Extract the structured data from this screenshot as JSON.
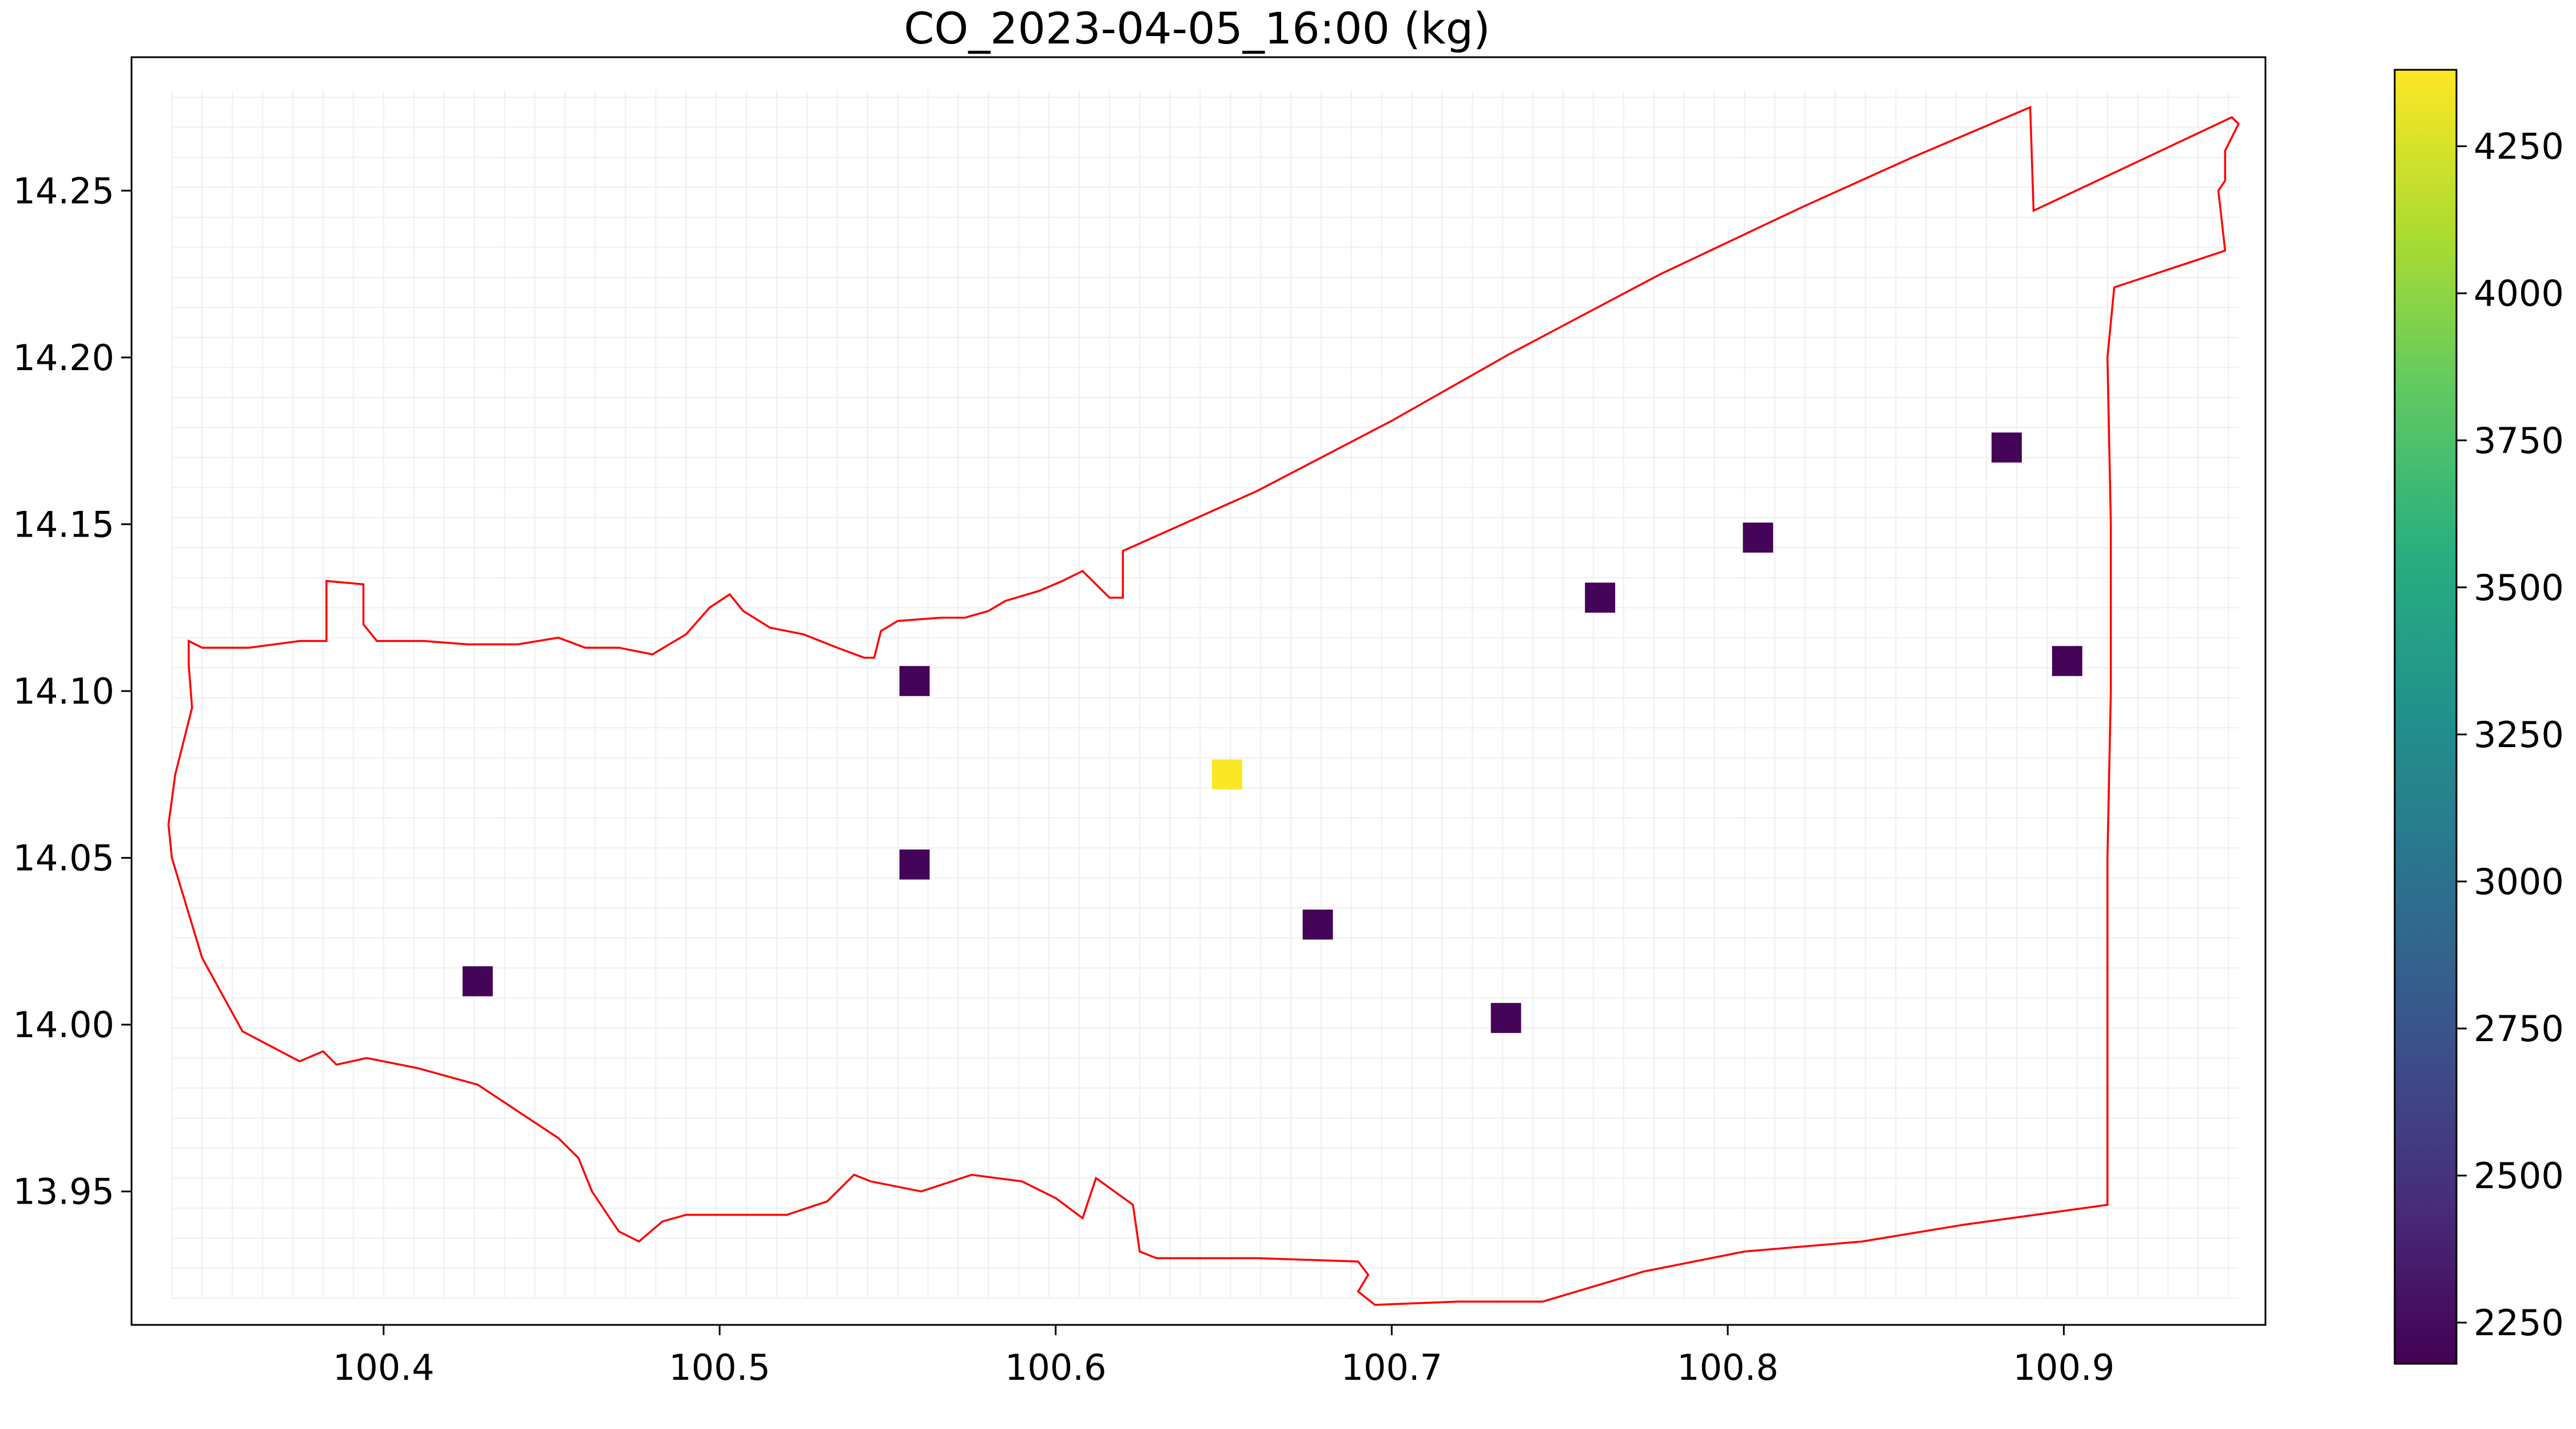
{
  "chart_data": {
    "type": "heatmap",
    "title": "CO_2023-04-05_16:00 (kg)",
    "xlabel": "",
    "ylabel": "",
    "xlim": [
      100.325,
      100.96
    ],
    "ylim": [
      13.91,
      14.29
    ],
    "x_ticks": [
      "100.4",
      "100.5",
      "100.6",
      "100.7",
      "100.8",
      "100.9"
    ],
    "y_ticks": [
      "13.95",
      "14.00",
      "14.05",
      "14.10",
      "14.15",
      "14.20",
      "14.25"
    ],
    "colorbar": {
      "colormap": "viridis",
      "range": [
        2180,
        4380
      ],
      "ticks": [
        "2250",
        "2500",
        "2750",
        "3000",
        "3250",
        "3500",
        "3750",
        "4000",
        "4250"
      ]
    },
    "grid": true,
    "boundary_color": "#ff0000",
    "cells": [
      {
        "lon": 100.428,
        "lat": 14.013,
        "value": 2200
      },
      {
        "lon": 100.558,
        "lat": 14.103,
        "value": 2200
      },
      {
        "lon": 100.558,
        "lat": 14.048,
        "value": 2200
      },
      {
        "lon": 100.651,
        "lat": 14.075,
        "value": 4370
      },
      {
        "lon": 100.678,
        "lat": 14.03,
        "value": 2200
      },
      {
        "lon": 100.734,
        "lat": 14.002,
        "value": 2200
      },
      {
        "lon": 100.762,
        "lat": 14.128,
        "value": 2200
      },
      {
        "lon": 100.809,
        "lat": 14.146,
        "value": 2200
      },
      {
        "lon": 100.883,
        "lat": 14.173,
        "value": 2200
      },
      {
        "lon": 100.901,
        "lat": 14.109,
        "value": 2200
      }
    ],
    "boundary": [
      [
        100.342,
        14.115
      ],
      [
        100.346,
        14.113
      ],
      [
        100.36,
        14.113
      ],
      [
        100.375,
        14.115
      ],
      [
        100.383,
        14.115
      ],
      [
        100.383,
        14.133
      ],
      [
        100.394,
        14.132
      ],
      [
        100.394,
        14.12
      ],
      [
        100.398,
        14.115
      ],
      [
        100.412,
        14.115
      ],
      [
        100.425,
        14.114
      ],
      [
        100.44,
        14.114
      ],
      [
        100.452,
        14.116
      ],
      [
        100.46,
        14.113
      ],
      [
        100.47,
        14.113
      ],
      [
        100.48,
        14.111
      ],
      [
        100.49,
        14.117
      ],
      [
        100.497,
        14.125
      ],
      [
        100.503,
        14.129
      ],
      [
        100.507,
        14.124
      ],
      [
        100.515,
        14.119
      ],
      [
        100.525,
        14.117
      ],
      [
        100.535,
        14.113
      ],
      [
        100.543,
        14.11
      ],
      [
        100.546,
        14.11
      ],
      [
        100.548,
        14.118
      ],
      [
        100.553,
        14.121
      ],
      [
        100.566,
        14.122
      ],
      [
        100.573,
        14.122
      ],
      [
        100.58,
        14.124
      ],
      [
        100.585,
        14.127
      ],
      [
        100.595,
        14.13
      ],
      [
        100.602,
        14.133
      ],
      [
        100.608,
        14.136
      ],
      [
        100.616,
        14.128
      ],
      [
        100.62,
        14.128
      ],
      [
        100.62,
        14.142
      ],
      [
        100.66,
        14.16
      ],
      [
        100.7,
        14.181
      ],
      [
        100.735,
        14.201
      ],
      [
        100.78,
        14.225
      ],
      [
        100.822,
        14.245
      ],
      [
        100.855,
        14.26
      ],
      [
        100.89,
        14.275
      ],
      [
        100.891,
        14.244
      ],
      [
        100.95,
        14.272
      ],
      [
        100.952,
        14.27
      ],
      [
        100.948,
        14.262
      ],
      [
        100.948,
        14.253
      ],
      [
        100.946,
        14.25
      ],
      [
        100.948,
        14.232
      ],
      [
        100.915,
        14.221
      ],
      [
        100.913,
        14.2
      ],
      [
        100.914,
        14.15
      ],
      [
        100.914,
        14.1
      ],
      [
        100.913,
        14.05
      ],
      [
        100.913,
        14.0
      ],
      [
        100.913,
        13.946
      ],
      [
        100.87,
        13.94
      ],
      [
        100.84,
        13.935
      ],
      [
        100.805,
        13.932
      ],
      [
        100.775,
        13.926
      ],
      [
        100.745,
        13.917
      ],
      [
        100.72,
        13.917
      ],
      [
        100.695,
        13.916
      ],
      [
        100.69,
        13.92
      ],
      [
        100.693,
        13.925
      ],
      [
        100.69,
        13.929
      ],
      [
        100.66,
        13.93
      ],
      [
        100.63,
        13.93
      ],
      [
        100.625,
        13.932
      ],
      [
        100.623,
        13.946
      ],
      [
        100.612,
        13.954
      ],
      [
        100.608,
        13.942
      ],
      [
        100.6,
        13.948
      ],
      [
        100.59,
        13.953
      ],
      [
        100.575,
        13.955
      ],
      [
        100.56,
        13.95
      ],
      [
        100.545,
        13.953
      ],
      [
        100.54,
        13.955
      ],
      [
        100.532,
        13.947
      ],
      [
        100.52,
        13.943
      ],
      [
        100.505,
        13.943
      ],
      [
        100.49,
        13.943
      ],
      [
        100.483,
        13.941
      ],
      [
        100.476,
        13.935
      ],
      [
        100.47,
        13.938
      ],
      [
        100.462,
        13.95
      ],
      [
        100.458,
        13.96
      ],
      [
        100.452,
        13.966
      ],
      [
        100.44,
        13.974
      ],
      [
        100.428,
        13.982
      ],
      [
        100.41,
        13.987
      ],
      [
        100.395,
        13.99
      ],
      [
        100.386,
        13.988
      ],
      [
        100.382,
        13.992
      ],
      [
        100.375,
        13.989
      ],
      [
        100.358,
        13.998
      ],
      [
        100.346,
        14.02
      ],
      [
        100.337,
        14.05
      ],
      [
        100.336,
        14.06
      ],
      [
        100.338,
        14.075
      ],
      [
        100.343,
        14.095
      ],
      [
        100.342,
        14.108
      ],
      [
        100.342,
        14.115
      ]
    ]
  }
}
